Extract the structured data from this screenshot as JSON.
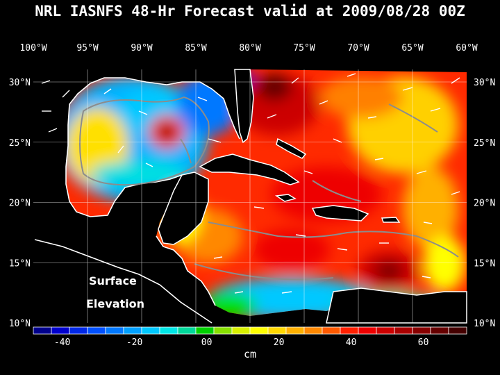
{
  "title": "NRL IASNFS  48-Hr Forecast valid at 2009/08/28 00Z",
  "map_label_line1": "Surface",
  "map_label_line2": "Elevation",
  "lon_labels": [
    "100°W",
    "95°W",
    "90°W",
    "85°W",
    "80°W",
    "75°W",
    "70°W",
    "65°W",
    "60°W"
  ],
  "lat_labels": [
    "30°N",
    "25°N",
    "20°N",
    "15°N",
    "10°N"
  ],
  "colorbar": {
    "unit": "cm",
    "tick_labels": [
      "-40",
      "-20",
      "00",
      "20",
      "40",
      "60"
    ],
    "colors": [
      "#00008b",
      "#0000cd",
      "#0028e6",
      "#0050ff",
      "#0078ff",
      "#00a0ff",
      "#00c8ff",
      "#00e6e6",
      "#00d89a",
      "#00d000",
      "#88e000",
      "#d8f000",
      "#ffff00",
      "#ffd800",
      "#ffb000",
      "#ff8800",
      "#ff5a00",
      "#ff2000",
      "#ee0000",
      "#cc0000",
      "#aa0000",
      "#880000",
      "#660000",
      "#440000"
    ]
  },
  "colors": {
    "background": "#000000",
    "land": "#000000",
    "grid": "#ffffff",
    "isobath": "#8c8c8c"
  }
}
